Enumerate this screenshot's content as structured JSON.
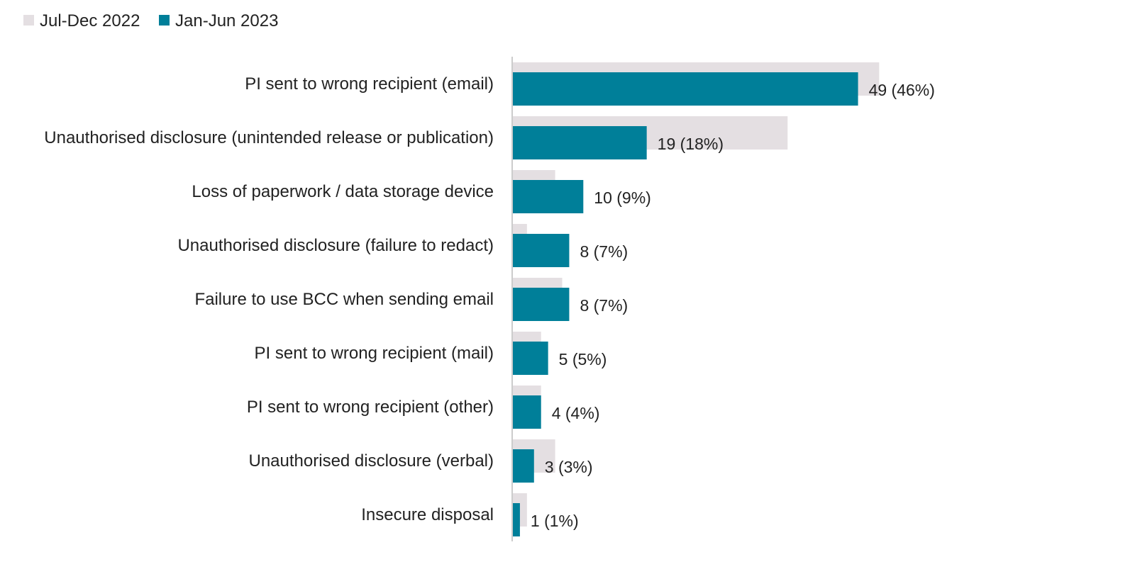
{
  "chart_data": {
    "type": "bar",
    "orientation": "horizontal",
    "title": "",
    "xlabel": "",
    "ylabel": "",
    "grid": false,
    "legend_position": "top-left",
    "xlim": [
      0,
      80
    ],
    "categories": [
      "PI sent to wrong recipient (email)",
      "Unauthorised disclosure (unintended release or publication)",
      "Loss of paperwork / data storage device",
      "Unauthorised disclosure (failure to redact)",
      "Failure to use BCC when sending email",
      "PI sent to wrong recipient (mail)",
      "PI sent to wrong recipient (other)",
      "Unauthorised disclosure (verbal)",
      "Insecure disposal"
    ],
    "series": [
      {
        "name": "Jul-Dec 2022",
        "color": "#e4dfe2",
        "values": [
          52,
          39,
          6,
          2,
          7,
          4,
          4,
          6,
          2
        ]
      },
      {
        "name": "Jan-Jun 2023",
        "color": "#007f99",
        "values": [
          49,
          19,
          10,
          8,
          8,
          5,
          4,
          3,
          1
        ]
      }
    ],
    "data_labels": [
      "49 (46%)",
      "19 (18%)",
      "10 (9%)",
      "8 (7%)",
      "8 (7%)",
      "5 (5%)",
      "4 (4%)",
      "3 (3%)",
      "1 (1%)"
    ]
  }
}
